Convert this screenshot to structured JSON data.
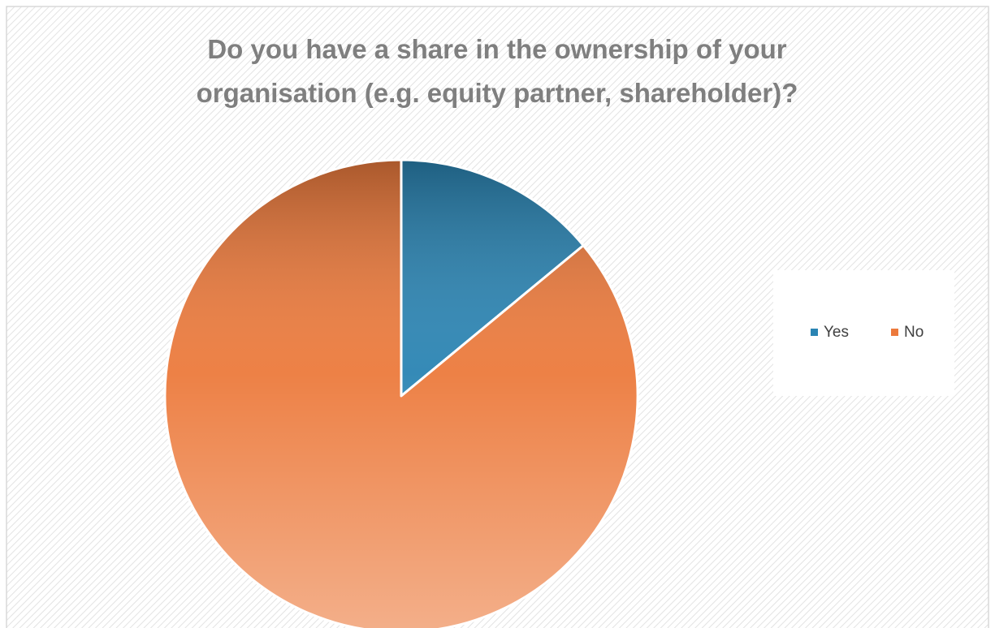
{
  "chart_data": {
    "type": "pie",
    "title": "Do you have a share in the ownership of your organisation (e.g. equity partner, shareholder)?",
    "categories": [
      "Yes",
      "No"
    ],
    "values": [
      14,
      86
    ],
    "colors": [
      "#2a84b3",
      "#ec7a3c"
    ],
    "legend": "right"
  }
}
